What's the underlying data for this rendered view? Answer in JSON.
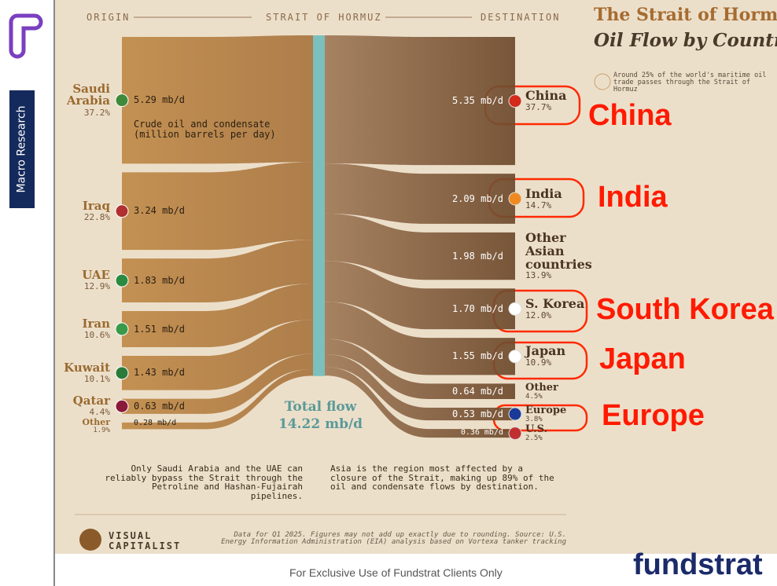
{
  "sidebar": {
    "label": "Macro Research"
  },
  "chart_data": {
    "type": "sankey",
    "title": "The Strait of Hormuz's",
    "subtitle": "Oil Flow by Country",
    "note": "Around 25% of the world's maritime oil trade passes through the Strait of Hormuz",
    "header": [
      "ORIGIN",
      "STRAIT OF HORMUZ",
      "DESTINATION"
    ],
    "unit_note": "Crude oil and condensate (million barrels per day)",
    "total_label": "Total flow",
    "total": 14.22,
    "total_value_label": "14.22 mb/d",
    "origins": {
      "names": [
        "Saudi Arabia",
        "Iraq",
        "UAE",
        "Iran",
        "Kuwait",
        "Qatar",
        "Other"
      ],
      "values": [
        5.29,
        3.24,
        1.83,
        1.51,
        1.43,
        0.63,
        0.28
      ],
      "value_labels": [
        "5.29 mb/d",
        "3.24 mb/d",
        "1.83 mb/d",
        "1.51 mb/d",
        "1.43 mb/d",
        "0.63 mb/d",
        "0.28 mb/d"
      ],
      "shares": [
        37.2,
        22.8,
        12.9,
        10.6,
        10.1,
        4.4,
        1.9
      ],
      "share_labels": [
        "37.2%",
        "22.8%",
        "12.9%",
        "10.6%",
        "10.1%",
        "4.4%",
        "1.9%"
      ]
    },
    "destinations": {
      "names": [
        "China",
        "India",
        "Other Asian countries",
        "S. Korea",
        "Japan",
        "Other",
        "Europe",
        "U.S."
      ],
      "values": [
        5.35,
        2.09,
        1.98,
        1.7,
        1.55,
        0.64,
        0.53,
        0.36
      ],
      "value_labels": [
        "5.35 mb/d",
        "2.09 mb/d",
        "1.98 mb/d",
        "1.70 mb/d",
        "1.55 mb/d",
        "0.64 mb/d",
        "0.53 mb/d",
        "0.36 mb/d"
      ],
      "shares": [
        37.7,
        14.7,
        13.9,
        12.0,
        10.9,
        4.5,
        3.8,
        2.5
      ],
      "share_labels": [
        "37.7%",
        "14.7%",
        "13.9%",
        "12.0%",
        "10.9%",
        "4.5%",
        "3.8%",
        "2.5%"
      ]
    },
    "annotations": [
      "Only Saudi Arabia and the UAE can reliably bypass the Strait through the Petroline and Hashan-Fujairah pipelines.",
      "Asia is the region most affected by a closure of the Strait, making up 89% of the oil and condensate flows by destination."
    ],
    "brand": "VISUAL CAPITALIST",
    "source": "Data for Q1 2025. Figures may not add up exactly due to rounding. Source: U.S. Energy Information Administration (EIA) analysis based on Vortexa tanker tracking"
  },
  "highlights": [
    "China",
    "India",
    "South Korea",
    "Japan",
    "Europe"
  ],
  "footer": {
    "text": "For Exclusive Use of Fundstrat Clients Only",
    "brand": "fundstrat"
  }
}
